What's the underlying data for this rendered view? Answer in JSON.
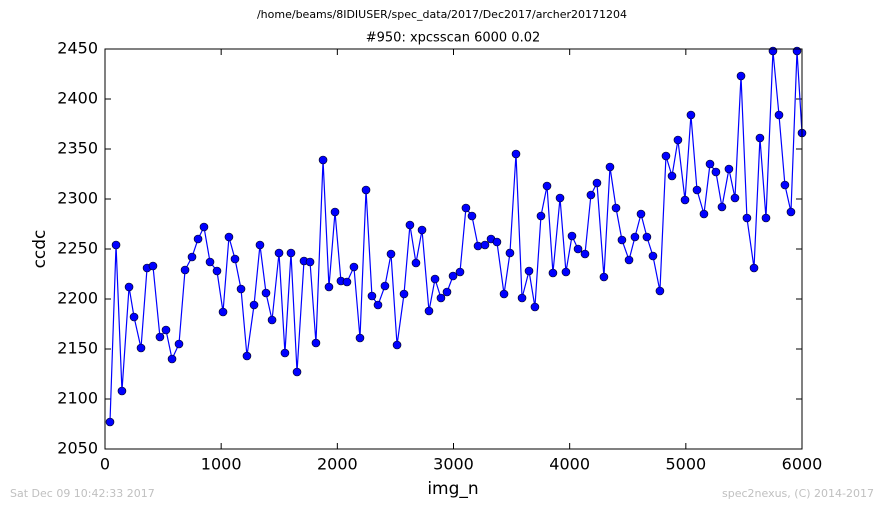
{
  "chart_data": {
    "type": "line",
    "suptitle": "/home/beams/8IDIUSER/spec_data/2017/Dec2017/archer20171204",
    "title": "#950: xpcsscan 6000 0.02",
    "xlabel": "img_n",
    "ylabel": "ccdc",
    "footer_left": "Sat Dec 09 10:42:33 2017",
    "footer_right": "spec2nexus, (C) 2014-2017",
    "color": "#0000ff",
    "x": [
      43,
      95,
      146,
      207,
      250,
      310,
      362,
      413,
      473,
      525,
      577,
      637,
      689,
      749,
      801,
      852,
      904,
      964,
      1016,
      1067,
      1119,
      1171,
      1222,
      1283,
      1334,
      1386,
      1438,
      1498,
      1549,
      1601,
      1653,
      1713,
      1765,
      1816,
      1877,
      1928,
      1980,
      2031,
      2083,
      2143,
      2195,
      2247,
      2298,
      2350,
      2410,
      2462,
      2514,
      2574,
      2625,
      2677,
      2729,
      2789,
      2841,
      2892,
      2944,
      2996,
      3056,
      3107,
      3159,
      3211,
      3271,
      3323,
      3374,
      3435,
      3486,
      3538,
      3590,
      3650,
      3701,
      3753,
      3805,
      3856,
      3917,
      3968,
      4020,
      4072,
      4132,
      4183,
      4235,
      4295,
      4347,
      4399,
      4450,
      4511,
      4562,
      4614,
      4665,
      4717,
      4777,
      4829,
      4881,
      4932,
      4993,
      5044,
      5096,
      5156,
      5208,
      5259,
      5311,
      5371,
      5423,
      5475,
      5526,
      5587,
      5638,
      5690,
      5750,
      5802,
      5853,
      5905,
      5957,
      6000
    ],
    "values": [
      2077,
      2254,
      2108,
      2212,
      2182,
      2151,
      2231,
      2233,
      2162,
      2169,
      2140,
      2155,
      2229,
      2242,
      2260,
      2272,
      2237,
      2228,
      2187,
      2262,
      2240,
      2210,
      2143,
      2194,
      2254,
      2206,
      2179,
      2246,
      2146,
      2246,
      2127,
      2238,
      2237,
      2156,
      2339,
      2212,
      2287,
      2218,
      2217,
      2232,
      2161,
      2309,
      2203,
      2194,
      2213,
      2245,
      2154,
      2205,
      2274,
      2236,
      2269,
      2188,
      2220,
      2201,
      2207,
      2223,
      2227,
      2291,
      2283,
      2253,
      2254,
      2260,
      2257,
      2205,
      2246,
      2345,
      2201,
      2228,
      2192,
      2283,
      2313,
      2226,
      2301,
      2227,
      2263,
      2250,
      2245,
      2304,
      2316,
      2222,
      2332,
      2291,
      2259,
      2239,
      2262,
      2285,
      2262,
      2243,
      2208,
      2343,
      2323,
      2359,
      2299,
      2384,
      2309,
      2285,
      2335,
      2327,
      2292,
      2330,
      2301,
      2423,
      2281,
      2231,
      2361,
      2281,
      2448,
      2384,
      2314,
      2287,
      2448,
      2366
    ],
    "xlim": [
      0,
      6000
    ],
    "xticks": [
      0,
      1000,
      2000,
      3000,
      4000,
      5000,
      6000
    ],
    "ylim": [
      2050,
      2450
    ],
    "yticks": [
      2050,
      2100,
      2150,
      2200,
      2250,
      2300,
      2350,
      2400,
      2450
    ]
  }
}
